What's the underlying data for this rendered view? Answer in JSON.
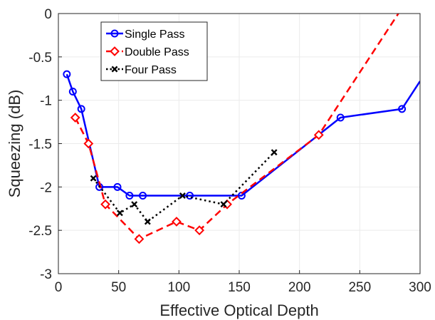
{
  "chart_data": {
    "type": "line",
    "xlabel": "Effective Optical Depth",
    "ylabel": "Squeezing (dB)",
    "xlim": [
      0,
      300
    ],
    "ylim": [
      -3,
      0
    ],
    "x_ticks": [
      "0",
      "50",
      "100",
      "150",
      "200",
      "250",
      "300"
    ],
    "y_ticks": [
      "0",
      "-0.5",
      "-1",
      "-1.5",
      "-2",
      "-2.5",
      "-3"
    ],
    "grid": true,
    "legend_position": "top-left",
    "series": [
      {
        "name": "Single Pass",
        "color": "#0000ff",
        "line_style": "solid",
        "marker": "circle",
        "points": [
          [
            7,
            -0.7
          ],
          [
            12,
            -0.9
          ],
          [
            19,
            -1.1
          ],
          [
            34,
            -2.0
          ],
          [
            49,
            -2.0
          ],
          [
            59,
            -2.1
          ],
          [
            70,
            -2.1
          ],
          [
            109,
            -2.1
          ],
          [
            152,
            -2.1
          ],
          [
            234,
            -1.2
          ],
          [
            285,
            -1.1
          ],
          [
            300,
            -0.78
          ]
        ],
        "marker_count": 11
      },
      {
        "name": "Double Pass",
        "color": "#ff0000",
        "line_style": "dashed",
        "marker": "diamond",
        "points": [
          [
            14,
            -1.2
          ],
          [
            25,
            -1.5
          ],
          [
            39,
            -2.2
          ],
          [
            67,
            -2.6
          ],
          [
            98,
            -2.4
          ],
          [
            117,
            -2.5
          ],
          [
            140,
            -2.2
          ],
          [
            216,
            -1.4
          ],
          [
            282,
            0.0
          ]
        ],
        "marker_count": 8
      },
      {
        "name": "Four Pass",
        "color": "#000000",
        "line_style": "dotted",
        "marker": "x",
        "points": [
          [
            29,
            -1.9
          ],
          [
            51,
            -2.3
          ],
          [
            63,
            -2.2
          ],
          [
            74,
            -2.4
          ],
          [
            103,
            -2.1
          ],
          [
            137,
            -2.2
          ],
          [
            179,
            -1.6
          ]
        ],
        "marker_count": 7
      }
    ]
  }
}
